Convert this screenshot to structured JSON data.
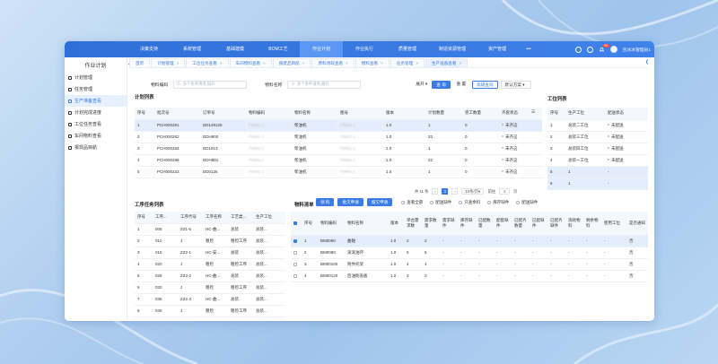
{
  "topnav": {
    "items": [
      "决策支持",
      "系统管理",
      "基础建模",
      "BOM工艺",
      "作业计划",
      "作业执行",
      "质量管理",
      "制造资源管理",
      "资产管理"
    ],
    "more": "•••",
    "badge": "99",
    "user": "吕冰冰管理员1"
  },
  "sidebar": {
    "title": "作业计划",
    "items": [
      "计划管理",
      "任务管理",
      "生产准备查看",
      "计划完成进度",
      "工位任务查看",
      "车间物料查看",
      "报现品目航"
    ]
  },
  "tabs": [
    "首页",
    "计划管理",
    "工位任务查看",
    "车间物料查看",
    "报废品目航",
    "原料领取查看",
    "物料查看",
    "任务管理",
    "生产准备查看"
  ],
  "filters": {
    "label1": "物料编码",
    "placeholder1": "多个条件请用,隔开",
    "label2": "物料名称",
    "placeholder2": "多个条件请用,隔开",
    "expand": "展开",
    "search": "查 询",
    "reset": "重 置",
    "advanced": "高级查询",
    "scheme": "默认方案"
  },
  "plan_list": {
    "title": "计划列表",
    "headers": [
      "序号",
      "批次号",
      "订单号",
      "物料编码",
      "物料名称",
      "图号",
      "版本",
      "计划数量",
      "完工数量",
      "齐套状态"
    ],
    "rows": [
      [
        "1",
        "PCH000281",
        "DD149125",
        "P9981-1",
        "柴油机",
        "P9981-1",
        "1.0",
        "1",
        "0",
        "未齐这"
      ],
      [
        "2",
        "PCH000282",
        "DDH900",
        "P9981-1",
        "柴油机",
        "P9981-1",
        "1.0",
        "33",
        "0",
        "未齐这"
      ],
      [
        "3",
        "PCH000284",
        "DD1913",
        "P9981-1",
        "柴油机",
        "P9981-1",
        "1.0",
        "1",
        "0",
        "未齐这"
      ],
      [
        "4",
        "PCH000286",
        "DDH891",
        "P9981-1",
        "柴油机",
        "P9981-1",
        "1.0",
        "22",
        "0",
        "未齐这"
      ],
      [
        "5",
        "PCH000333",
        "DD0126",
        "P9981-1",
        "柴油机",
        "P9981-1",
        "1.0",
        "1",
        "0",
        "未齐这"
      ]
    ],
    "pagination": {
      "total": "共 11 条",
      "page": "1",
      "size": "10条/页",
      "goto": "前往",
      "goto_page": "1",
      "unit": "页"
    }
  },
  "station_list": {
    "title": "工位列表",
    "headers": [
      "序号",
      "生产工位",
      "配送状态"
    ],
    "rows": [
      [
        "1",
        "总装二工位",
        "未配送"
      ],
      [
        "2",
        "总装三工位",
        "未配送"
      ],
      [
        "3",
        "总装四工位",
        "未配送"
      ],
      [
        "4",
        "总装一工位",
        "未配送"
      ],
      [
        "5",
        "1",
        "-"
      ],
      [
        "6",
        "1",
        "-"
      ]
    ]
  },
  "process_list": {
    "title": "工序任务列表",
    "headers": [
      "序号",
      "工序...",
      "工序代号",
      "工序名称",
      "工艺类...",
      "生产工位"
    ],
    "rows": [
      [
        "1",
        "005",
        "ZZ1-6",
        "HC-曲...",
        "总装",
        "总装..."
      ],
      [
        "2",
        "010",
        "J",
        "粗检",
        "粗检工序",
        "总装..."
      ],
      [
        "3",
        "015",
        "ZZ2-1",
        "HC-安...",
        "总装",
        "总装..."
      ],
      [
        "4",
        "020",
        "J",
        "粗检",
        "粗检工序",
        "总装..."
      ],
      [
        "5",
        "025",
        "ZZ2-2",
        "HC-曲...",
        "总装",
        "总装..."
      ],
      [
        "6",
        "030",
        "J",
        "粗检",
        "粗检工序",
        "总装..."
      ],
      [
        "7",
        "035",
        "ZZ2-3",
        "HC-曲...",
        "总装",
        "总装..."
      ],
      [
        "8",
        "040",
        "J",
        "粗检",
        "粗检工序",
        "总装..."
      ]
    ]
  },
  "material_list": {
    "title": "物料清单",
    "buttons": [
      "领 料",
      "批欠申请",
      "报欠申请"
    ],
    "options": [
      "查看全部",
      "配送缺件",
      "只查余料",
      "库存缺件",
      "配送缺件"
    ],
    "headers": [
      "序号",
      "物料编码",
      "物料名称",
      "版本",
      "单台需求数",
      "需求数量",
      "需求缺件",
      "库存缺件",
      "已配数量",
      "配套缺件",
      "已配齐数量",
      "已配缺件",
      "已配齐缺件",
      "消耗物料",
      "剩余物料",
      "使用工位",
      "是否通知"
    ],
    "rows": [
      [
        "1",
        "BM0060",
        "曲轴",
        "1.0",
        "2",
        "2",
        "-",
        "-",
        "-",
        "-",
        "-",
        "-",
        "-",
        "-",
        "-",
        "-",
        "否"
      ],
      [
        "2",
        "BM0080",
        "滚滚油环",
        "1.0",
        "5",
        "5",
        "-",
        "-",
        "-",
        "-",
        "-",
        "-",
        "-",
        "-",
        "-",
        "-",
        "否"
      ],
      [
        "3",
        "BM00100",
        "附件托架",
        "1.0",
        "4",
        "4",
        "-",
        "-",
        "-",
        "-",
        "-",
        "-",
        "-",
        "-",
        "-",
        "-",
        "否"
      ],
      [
        "4",
        "BM00120",
        "后油削盖板",
        "1.0",
        "3",
        "3",
        "-",
        "-",
        "-",
        "-",
        "-",
        "-",
        "-",
        "-",
        "-",
        "-",
        "否"
      ]
    ]
  }
}
